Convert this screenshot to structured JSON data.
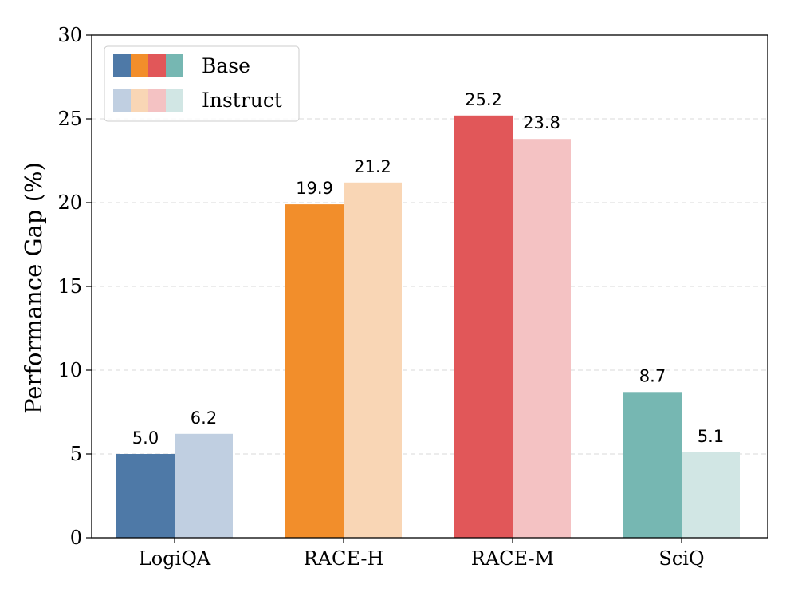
{
  "chart_data": {
    "type": "bar",
    "title": "",
    "xlabel": "",
    "ylabel": "Performance Gap (%)",
    "ylim": [
      0,
      30
    ],
    "yticks": [
      0,
      5,
      10,
      15,
      20,
      25,
      30
    ],
    "grid": "horizontal dashed",
    "legend_position": "top-left",
    "categories": [
      "LogiQA",
      "RACE-H",
      "RACE-M",
      "SciQ"
    ],
    "series": [
      {
        "name": "Base",
        "values": [
          5.0,
          19.9,
          25.2,
          8.7
        ],
        "labels": [
          "5.0",
          "19.9",
          "25.2",
          "8.7"
        ],
        "colors": [
          "#4e79a7",
          "#f28e2b",
          "#e15759",
          "#76b7b2"
        ]
      },
      {
        "name": "Instruct",
        "values": [
          6.2,
          21.2,
          23.8,
          5.1
        ],
        "labels": [
          "6.2",
          "21.2",
          "23.8",
          "5.1"
        ],
        "colors": [
          "#c0cfe1",
          "#f9d6b5",
          "#f4c2c3",
          "#d1e6e4"
        ]
      }
    ]
  }
}
